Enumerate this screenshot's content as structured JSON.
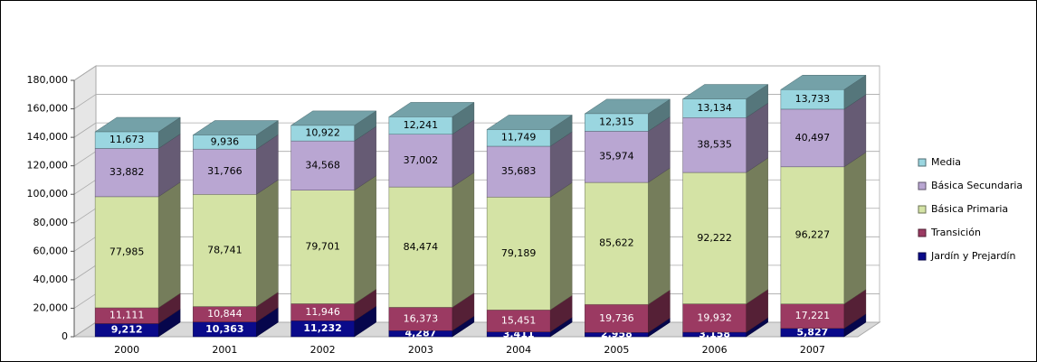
{
  "chart_data": {
    "type": "bar3d_stacked",
    "categories": [
      "2000",
      "2001",
      "2002",
      "2003",
      "2004",
      "2005",
      "2006",
      "2007"
    ],
    "series": [
      {
        "name": "Jardín y Prejardín",
        "color": "#0a0a8a",
        "values": [
          9212,
          10363,
          11232,
          4287,
          3411,
          2958,
          3158,
          5827
        ],
        "value_labels": [
          "9,212",
          "10,363",
          "11,232",
          "4,287",
          "3,411",
          "2,958",
          "3,158",
          "5,827"
        ]
      },
      {
        "name": "Transición",
        "color": "#9b3a62",
        "values": [
          11111,
          10844,
          11946,
          16373,
          15451,
          19736,
          19932,
          17221
        ],
        "value_labels": [
          "11,111",
          "10,844",
          "11,946",
          "16,373",
          "15,451",
          "19,736",
          "19,932",
          "17,221"
        ]
      },
      {
        "name": "Básica Primaria",
        "color": "#d4e3a5",
        "values": [
          77985,
          78741,
          79701,
          84474,
          79189,
          85622,
          92222,
          96227
        ],
        "value_labels": [
          "77,985",
          "78,741",
          "79,701",
          "84,474",
          "79,189",
          "85,622",
          "92,222",
          "96,227"
        ]
      },
      {
        "name": "Básica Secundaria",
        "color": "#b9a6d2",
        "values": [
          33882,
          31766,
          34568,
          37002,
          35683,
          35974,
          38535,
          40497
        ],
        "value_labels": [
          "33,882",
          "31,766",
          "34,568",
          "37,002",
          "35,683",
          "35,974",
          "38,535",
          "40,497"
        ]
      },
      {
        "name": "Media",
        "color": "#9ad6e0",
        "values": [
          11673,
          9936,
          10922,
          12241,
          11749,
          12315,
          13134,
          13733
        ],
        "value_labels": [
          "11,673",
          "9,936",
          "10,922",
          "12,241",
          "11,749",
          "12,315",
          "13,134",
          "13,733"
        ]
      }
    ],
    "ylim": [
      0,
      180000
    ],
    "yticks": [
      {
        "value": 0,
        "label": "0"
      },
      {
        "value": 20000,
        "label": "20,000"
      },
      {
        "value": 40000,
        "label": "40,000"
      },
      {
        "value": 60000,
        "label": "60,000"
      },
      {
        "value": 80000,
        "label": "80,000"
      },
      {
        "value": 100000,
        "label": "100,000"
      },
      {
        "value": 120000,
        "label": "120,000"
      },
      {
        "value": 140000,
        "label": "140,000"
      },
      {
        "value": 160000,
        "label": "160,000"
      },
      {
        "value": 180000,
        "label": "180,000"
      }
    ],
    "grid": true,
    "legend": "right"
  }
}
